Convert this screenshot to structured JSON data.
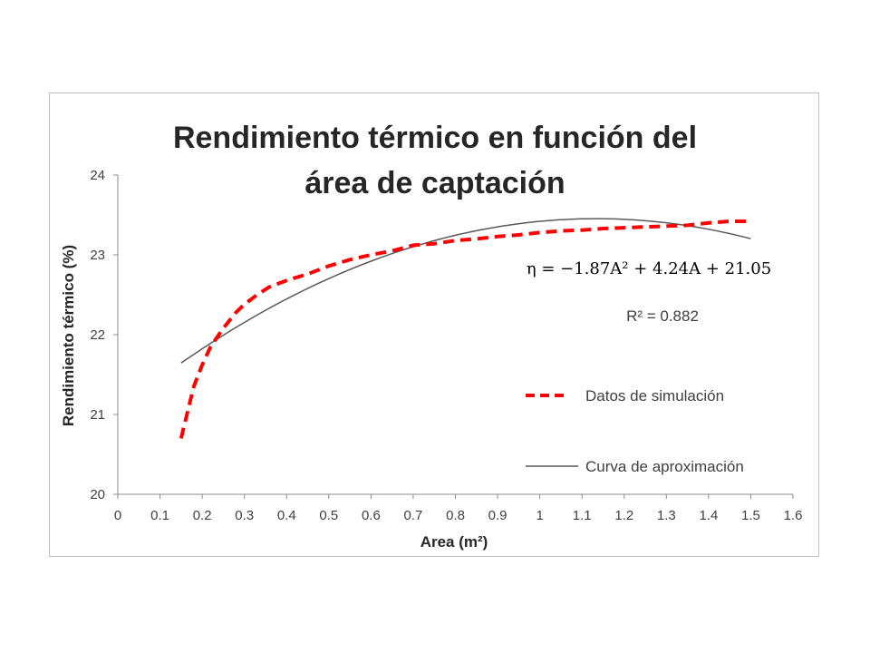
{
  "chart_data": {
    "type": "line",
    "title_lines": [
      "Rendimiento térmico en función del",
      "área de captación"
    ],
    "xlabel": "Area  (m²)",
    "ylabel": "Rendimiento térmico (%)",
    "xlim": [
      0,
      1.6
    ],
    "ylim": [
      20,
      24
    ],
    "x_ticks": [
      "0",
      "0.1",
      "0.2",
      "0.3",
      "0.4",
      "0.5",
      "0.6",
      "0.7",
      "0.8",
      "0.9",
      "1",
      "1.1",
      "1.2",
      "1.3",
      "1.4",
      "1.5",
      "1.6"
    ],
    "y_ticks": [
      "20",
      "21",
      "22",
      "23",
      "24"
    ],
    "grid": false,
    "legend_position": "right",
    "series": [
      {
        "name": "Datos de simulación",
        "style": "dashed",
        "color": "#ff0000",
        "x": [
          0.15,
          0.18,
          0.2,
          0.22,
          0.25,
          0.28,
          0.3,
          0.33,
          0.36,
          0.4,
          0.45,
          0.5,
          0.55,
          0.6,
          0.65,
          0.7,
          0.75,
          0.8,
          0.85,
          0.9,
          0.95,
          1.0,
          1.05,
          1.1,
          1.15,
          1.2,
          1.25,
          1.3,
          1.35,
          1.4,
          1.45,
          1.5
        ],
        "y": [
          20.7,
          21.35,
          21.62,
          21.85,
          22.08,
          22.28,
          22.38,
          22.5,
          22.6,
          22.68,
          22.76,
          22.86,
          22.94,
          23.0,
          23.05,
          23.12,
          23.14,
          23.18,
          23.2,
          23.23,
          23.25,
          23.28,
          23.3,
          23.31,
          23.33,
          23.34,
          23.35,
          23.36,
          23.37,
          23.4,
          23.42,
          23.42
        ]
      },
      {
        "name": "Curva de aproximación",
        "style": "solid",
        "color": "#595959",
        "fit": {
          "a": -1.87,
          "b": 4.24,
          "c": 21.05
        },
        "x_range": [
          0.15,
          1.5
        ]
      }
    ],
    "annotations": {
      "equation": "η = −1.87A² + 4.24A + 21.05",
      "r_squared": "R² = 0.882"
    }
  }
}
